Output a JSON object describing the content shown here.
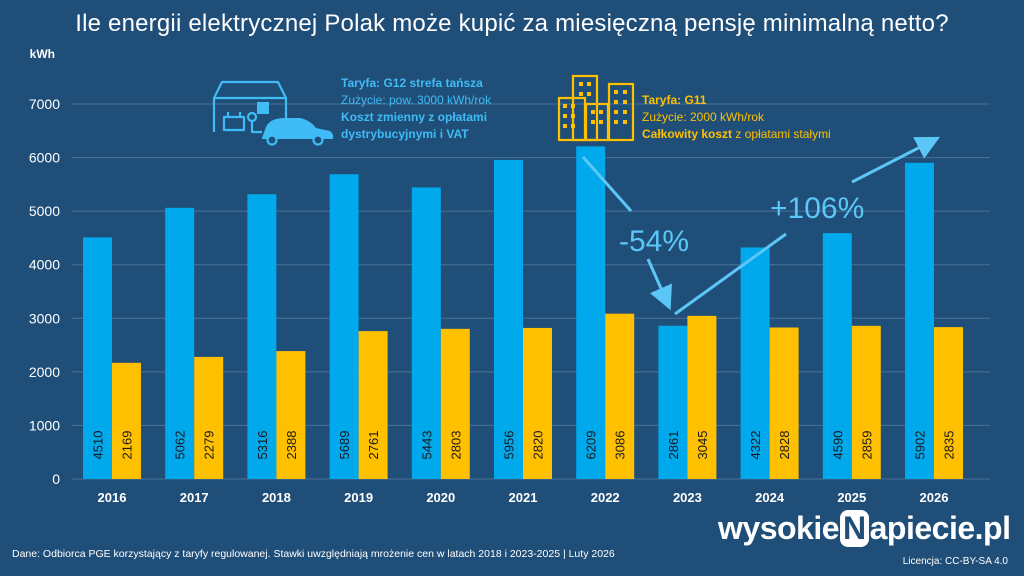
{
  "chart_data": {
    "type": "bar",
    "title": "Ile energii elektrycznej Polak może kupić za miesięczną pensję minimalną netto?",
    "ylabel": "kWh",
    "ylim": [
      0,
      7000
    ],
    "yticks": [
      0,
      1000,
      2000,
      3000,
      4000,
      5000,
      6000,
      7000
    ],
    "grid": true,
    "categories": [
      "2016",
      "2017",
      "2018",
      "2019",
      "2020",
      "2021",
      "2022",
      "2023",
      "2024",
      "2025",
      "2026"
    ],
    "series": [
      {
        "values": [
          4510,
          5062,
          5316,
          5689,
          5443,
          5956,
          6209,
          2861,
          4322,
          4590,
          5902
        ],
        "color": "#00a8ec"
      },
      {
        "values": [
          2169,
          2279,
          2388,
          2761,
          2803,
          2820,
          3086,
          3045,
          2828,
          2859,
          2835
        ],
        "color": "#ffc000"
      }
    ],
    "annotations": {
      "drop": "-54%",
      "rise": "+106%"
    }
  },
  "legend": {
    "blue": {
      "line1": "Taryfa: G12 strefa tańsza",
      "line2": "Zużycie: pow. 3000 kWh/rok",
      "line3": "Koszt zmienny z opłatami",
      "line4": "dystrybucyjnymi i VAT",
      "icon": "house-car-icon"
    },
    "gold": {
      "line1": "Taryfa: G11",
      "line2": "Zużycie: 2000 kWh/rok",
      "line3_bold": "Całkowity koszt",
      "line3_rest": " z opłatami stałymi",
      "icon": "buildings-icon"
    }
  },
  "footer": {
    "source": "Dane: Odbiorca PGE korzystający z taryfy regulowanej. Stawki uwzględniają mrożenie cen w latach 2018 i 2023-2025   |   Luty 2026",
    "license": "Licencja: CC-BY-SA 4.0"
  },
  "logo": {
    "before": "wysokie",
    "letter": "N",
    "after": "apiecie.pl"
  },
  "colors": {
    "background": "#1f4e79",
    "blue": "#00a8ec",
    "gold": "#ffc000",
    "annotation": "#5cc7f7"
  }
}
